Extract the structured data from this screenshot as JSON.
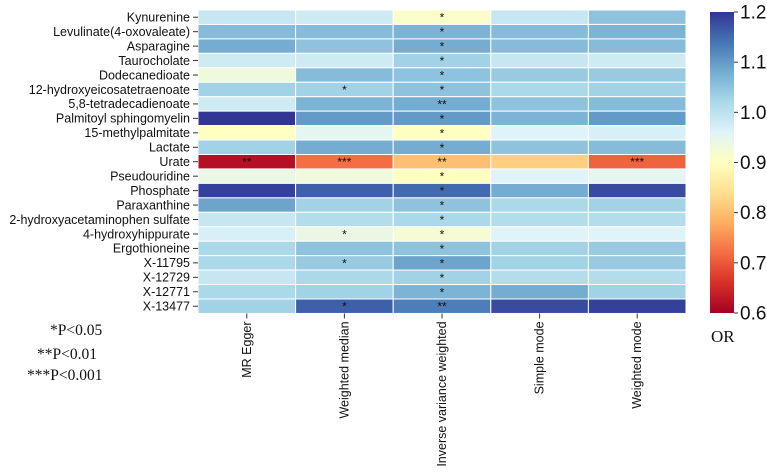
{
  "chart_data": {
    "type": "heatmap",
    "rows": [
      "Kynurenine",
      "Levulinate(4-oxovaleate)",
      "Asparagine",
      "Taurocholate",
      "Dodecanedioate",
      "12-hydroxyeicosatetraenoate",
      "5,8-tetradecadienoate",
      "Palmitoyl sphingomyelin",
      "15-methylpalmitate",
      "Lactate",
      "Urate",
      "Pseudouridine",
      "Phosphate",
      "Paraxanthine",
      "2-hydroxyacetaminophen sulfate",
      "4-hydroxyhippurate",
      "Ergothioneine",
      "X-11795",
      "X-12729",
      "X-12771",
      "X-13477"
    ],
    "columns": [
      "MR Egger",
      "Weighted median",
      "Inverse variance weighted",
      "Simple mode",
      "Weighted mode"
    ],
    "values": [
      [
        0.99,
        0.98,
        0.91,
        0.99,
        1.05
      ],
      [
        1.06,
        1.06,
        1.07,
        1.06,
        1.07
      ],
      [
        1.08,
        1.05,
        1.08,
        1.06,
        1.06
      ],
      [
        0.98,
        0.98,
        1.03,
        0.99,
        0.98
      ],
      [
        0.93,
        1.06,
        1.05,
        1.04,
        1.04
      ],
      [
        1.03,
        1.03,
        1.05,
        1.02,
        1.03
      ],
      [
        0.98,
        1.07,
        1.08,
        1.05,
        1.06
      ],
      [
        1.2,
        1.1,
        1.1,
        1.07,
        1.1
      ],
      [
        0.9,
        0.95,
        0.9,
        0.96,
        0.97
      ],
      [
        1.03,
        1.08,
        1.08,
        1.05,
        1.06
      ],
      [
        0.62,
        0.72,
        0.8,
        0.82,
        0.71
      ],
      [
        0.94,
        0.93,
        0.9,
        0.96,
        0.95
      ],
      [
        1.19,
        1.16,
        1.15,
        1.08,
        1.18
      ],
      [
        1.09,
        1.03,
        1.05,
        1.02,
        1.03
      ],
      [
        0.99,
        1.01,
        1.02,
        1.01,
        1.01
      ],
      [
        0.97,
        0.94,
        0.92,
        0.96,
        0.96
      ],
      [
        1.02,
        1.05,
        1.05,
        1.03,
        1.04
      ],
      [
        1.02,
        1.04,
        1.09,
        1.03,
        1.04
      ],
      [
        0.99,
        1.02,
        1.03,
        1.01,
        1.01
      ],
      [
        1.02,
        1.03,
        1.07,
        1.08,
        1.03
      ],
      [
        1.03,
        1.16,
        1.13,
        1.18,
        1.19
      ]
    ],
    "annotations": [
      [
        "",
        "",
        "*",
        "",
        ""
      ],
      [
        "",
        "",
        "*",
        "",
        ""
      ],
      [
        "",
        "",
        "*",
        "",
        ""
      ],
      [
        "",
        "",
        "*",
        "",
        ""
      ],
      [
        "",
        "",
        "*",
        "",
        ""
      ],
      [
        "",
        "*",
        "*",
        "",
        ""
      ],
      [
        "",
        "",
        "**",
        "",
        ""
      ],
      [
        "",
        "",
        "*",
        "",
        ""
      ],
      [
        "",
        "",
        "*",
        "",
        ""
      ],
      [
        "",
        "",
        "*",
        "",
        ""
      ],
      [
        "**",
        "***",
        "**",
        "",
        "***"
      ],
      [
        "",
        "",
        "*",
        "",
        ""
      ],
      [
        "",
        "",
        "*",
        "",
        ""
      ],
      [
        "",
        "",
        "*",
        "",
        ""
      ],
      [
        "",
        "",
        "*",
        "",
        ""
      ],
      [
        "",
        "*",
        "*",
        "",
        ""
      ],
      [
        "",
        "",
        "*",
        "",
        ""
      ],
      [
        "",
        "*",
        "*",
        "",
        ""
      ],
      [
        "",
        "",
        "*",
        "",
        ""
      ],
      [
        "",
        "",
        "*",
        "",
        ""
      ],
      [
        "",
        "*",
        "**",
        "",
        ""
      ]
    ],
    "colorbar": {
      "label": "OR",
      "range": [
        0.6,
        1.2
      ],
      "ticks": [
        "1.2",
        "1.1",
        "1.0",
        "0.9",
        "0.8",
        "0.7",
        "0.6"
      ],
      "colormap": "RdYlBu",
      "colors": [
        "#a50026",
        "#d73027",
        "#f46d43",
        "#fdae61",
        "#fee090",
        "#ffffbf",
        "#e0f3f8",
        "#abd9e9",
        "#74add1",
        "#4575b4",
        "#313695"
      ]
    },
    "significance_legend": [
      "*P<0.05",
      "**P<0.01",
      "***P<0.001"
    ]
  }
}
